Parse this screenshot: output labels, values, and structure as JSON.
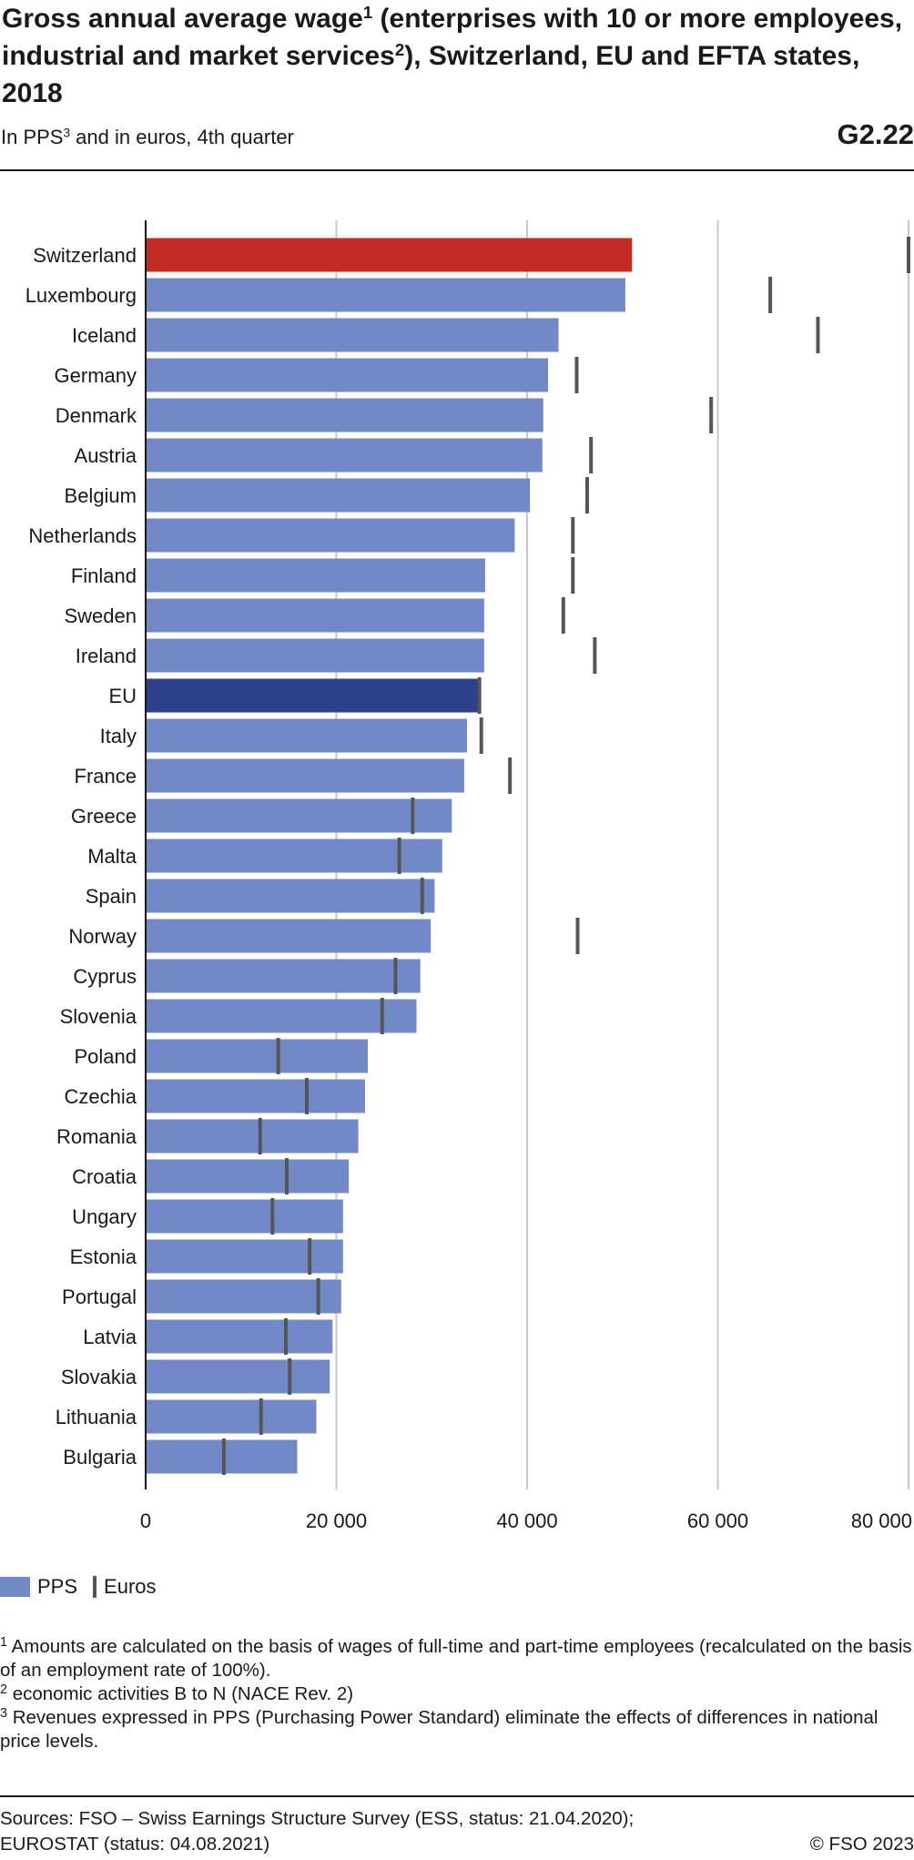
{
  "header": {
    "title_parts": [
      "Gross annual average wage",
      "1",
      " (enterprises with 10 or more employees, industrial and market services",
      "2",
      "), Switzerland, EU and EFTA states, 2018"
    ],
    "subtitle_parts": [
      "In PPS",
      "3",
      " and in euros, 4th quarter"
    ],
    "code": "G2.22"
  },
  "legend": {
    "pps": "PPS",
    "euros": "Euros"
  },
  "colors": {
    "pps": "#7189c6",
    "switzerland": "#c42b23",
    "eu": "#2c418c",
    "euro_marker": "#555555",
    "grid": "#c8c8c8",
    "axis": "#1a1a1a"
  },
  "footnotes": [
    {
      "num": "1",
      "text": "Amounts are calculated on the basis of wages of full-time and part-time employees (recalculated on the basis of an employment rate of 100%)."
    },
    {
      "num": "2",
      "text": "economic activities B to N (NACE Rev. 2)"
    },
    {
      "num": "3",
      "text": "Revenues expressed in PPS (Purchasing Power Standard) eliminate the effects of differences in national price levels."
    }
  ],
  "sources": [
    "Sources: FSO – Swiss Earnings Structure Survey (ESS, status: 21.04.2020);",
    "EUROSTAT (status: 04.08.2021)"
  ],
  "copyright": "© FSO 2023",
  "chart_data": {
    "type": "bar",
    "orientation": "horizontal",
    "xlim": [
      0,
      80000
    ],
    "xticks": [
      0,
      20000,
      40000,
      60000,
      80000
    ],
    "xtick_labels": [
      "0",
      "20 000",
      "40 000",
      "60 000",
      "80 000"
    ],
    "grid": true,
    "legend_position": "bottom-left",
    "categories": [
      "Switzerland",
      "Luxembourg",
      "Iceland",
      "Germany",
      "Denmark",
      "Austria",
      "Belgium",
      "Netherlands",
      "Finland",
      "Sweden",
      "Ireland",
      "EU",
      "Italy",
      "France",
      "Greece",
      "Malta",
      "Spain",
      "Norway",
      "Cyprus",
      "Slovenia",
      "Poland",
      "Czechia",
      "Romania",
      "Croatia",
      "Ungary",
      "Estonia",
      "Portugal",
      "Latvia",
      "Slovakia",
      "Lithuania",
      "Bulgaria"
    ],
    "series": [
      {
        "name": "PPS",
        "kind": "bar",
        "values": [
          51000,
          50300,
          43300,
          42200,
          41700,
          41600,
          40300,
          38700,
          35600,
          35500,
          35500,
          35000,
          33700,
          33400,
          32100,
          31100,
          30300,
          29900,
          28800,
          28400,
          23300,
          23000,
          22300,
          21300,
          20700,
          20700,
          20500,
          19600,
          19300,
          17900,
          15900
        ]
      },
      {
        "name": "Euros",
        "kind": "marker",
        "values": [
          80000,
          65500,
          70500,
          45200,
          59300,
          46700,
          46300,
          44800,
          44800,
          43800,
          47100,
          35000,
          35200,
          38200,
          28000,
          26600,
          29000,
          45300,
          26200,
          24800,
          13900,
          16900,
          12000,
          14800,
          13300,
          17200,
          18100,
          14700,
          15100,
          12100,
          8200
        ]
      }
    ]
  }
}
